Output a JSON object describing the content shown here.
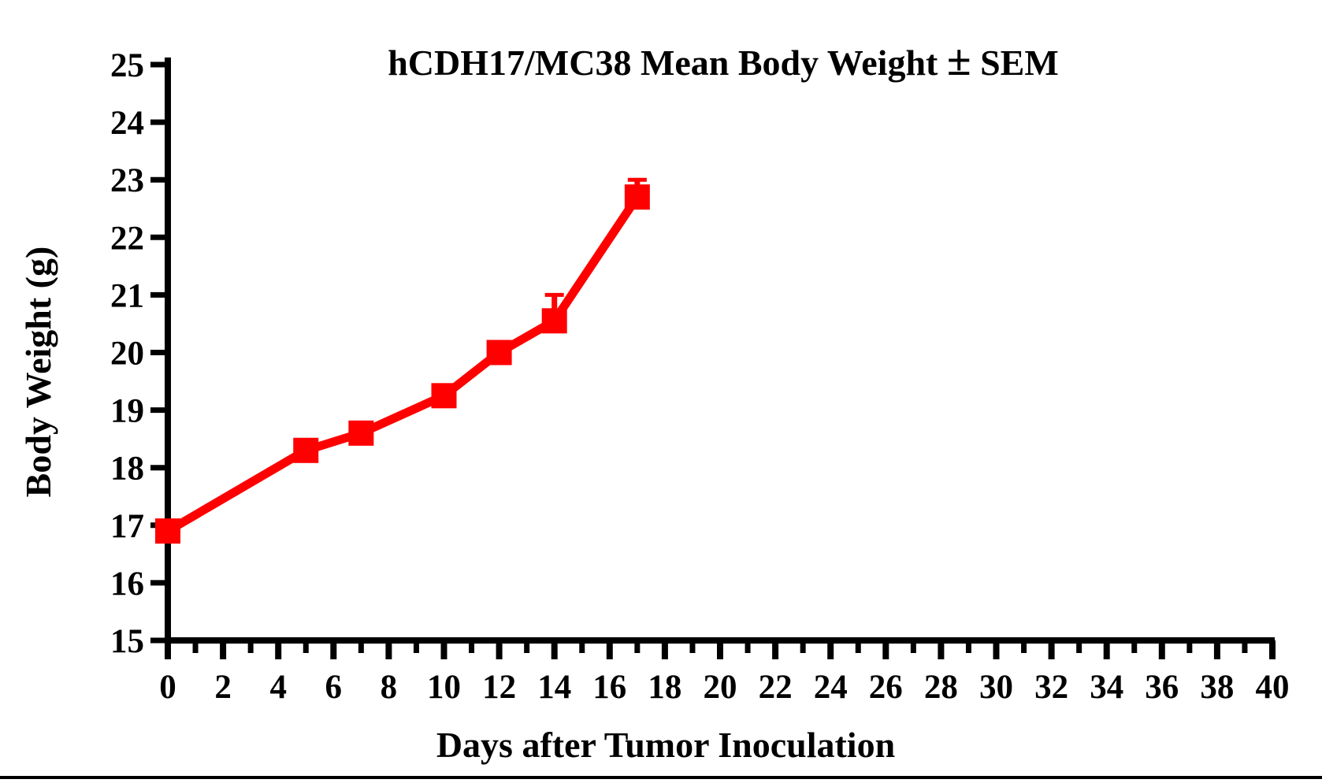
{
  "figure": {
    "background_color": "#ffffff",
    "bottom_rule_color": "#000000"
  },
  "chart_data": {
    "type": "line",
    "title": "hCDH17/MC38 Mean Body Weight ± SEM",
    "xlabel": "Days after Tumor Inoculation",
    "ylabel": "Body Weight (g)",
    "xlim": [
      0,
      40
    ],
    "ylim": [
      15,
      25
    ],
    "x_tick_labels": [
      0,
      2,
      4,
      6,
      8,
      10,
      12,
      14,
      16,
      18,
      20,
      22,
      24,
      26,
      28,
      30,
      32,
      34,
      36,
      38,
      40
    ],
    "x_minor_tick_step": 1,
    "y_tick_labels": [
      15,
      16,
      17,
      18,
      19,
      20,
      21,
      22,
      23,
      24,
      25
    ],
    "grid": false,
    "legend_position": "none",
    "axis_color": "#000000",
    "series": [
      {
        "name": "hCDH17/MC38 mean body weight",
        "color": "#ff0000",
        "marker": "square",
        "x": [
          0,
          5,
          7,
          10,
          12,
          14,
          17
        ],
        "y": [
          16.9,
          18.3,
          18.6,
          19.25,
          20.0,
          20.55,
          22.7
        ],
        "sem_upper": [
          0,
          0,
          0,
          0,
          0,
          0.45,
          0.3
        ],
        "sem_note": "upward SEM error bars visible only at days 14 and 17; others smaller than marker"
      }
    ]
  }
}
